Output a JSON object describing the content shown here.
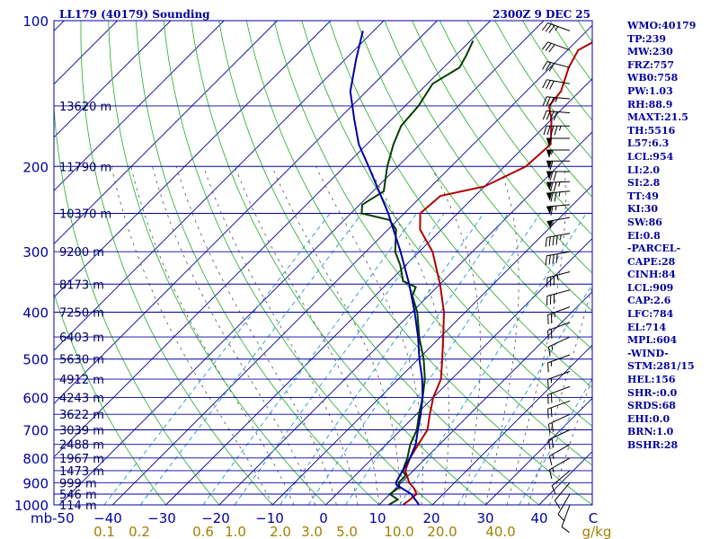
{
  "header": {
    "station": "LL179 (40179) Sounding",
    "time": "2300Z  9 DEC 25"
  },
  "indices": [
    "WMO:40179",
    "TP:239",
    "MW:230",
    "FRZ:757",
    "WB0:758",
    "PW:1.03",
    "RH:88.9",
    "MAXT:21.5",
    "TH:5516",
    "L57:6.3",
    "LCL:954",
    "LI:2.0",
    "SI:2.8",
    "TT:49",
    "KI:30",
    "SW:86",
    "EI:0.8",
    "-PARCEL-",
    "CAPE:28",
    "CINH:84",
    "LCL:909",
    "CAP:2.6",
    "LFC:784",
    "EL:714",
    "MPL:604",
    "-WIND-",
    "STM:281/15",
    "HEL:156",
    "SHR-:0.0",
    "SRDS:68",
    "EHI:0.0",
    "BRN:1.0",
    "BSHR:28"
  ],
  "chart_data": {
    "type": "skew-t",
    "title": "LL179 (40179) Sounding",
    "valid_time": "2300Z  9 DEC 25",
    "pressure_range_mb": [
      1000,
      100
    ],
    "pressure_ticks": [
      100,
      200,
      300,
      400,
      500,
      600,
      700,
      800,
      900,
      1000
    ],
    "temperature_ticks": [
      -50,
      -40,
      -30,
      -20,
      -10,
      0,
      10,
      20,
      30,
      40,
      50
    ],
    "temperature_tick_labels": [
      "mb-50",
      "−40",
      "−30",
      "−20",
      "−10",
      "0",
      "10",
      "20",
      "30",
      "40",
      "C"
    ],
    "temperature_range_c": [
      -50,
      50
    ],
    "mixing_ratio_labels": [
      "0.1",
      "0.2",
      "0.6",
      "1.0",
      "2.0",
      "3.0",
      "5.0",
      "10.0",
      "20.0",
      "40.0",
      "g/kg"
    ],
    "height_labels": [
      {
        "p": 150,
        "h": "13620 m"
      },
      {
        "p": 200,
        "h": "11790 m"
      },
      {
        "p": 250,
        "h": "10370 m"
      },
      {
        "p": 300,
        "h": "9200 m"
      },
      {
        "p": 350,
        "h": "8173 m"
      },
      {
        "p": 400,
        "h": "7250 m"
      },
      {
        "p": 450,
        "h": "6403 m"
      },
      {
        "p": 500,
        "h": "5630 m"
      },
      {
        "p": 550,
        "h": "4912 m"
      },
      {
        "p": 600,
        "h": "4243 m"
      },
      {
        "p": 650,
        "h": "3622 m"
      },
      {
        "p": 700,
        "h": "3039 m"
      },
      {
        "p": 750,
        "h": "2488 m"
      },
      {
        "p": 800,
        "h": "1967 m"
      },
      {
        "p": 850,
        "h": "1473 m"
      },
      {
        "p": 900,
        "h": "999 m"
      },
      {
        "p": 950,
        "h": "546 m"
      },
      {
        "p": 1000,
        "h": "114 m"
      }
    ],
    "series": [
      {
        "name": "Temperature",
        "color": "#b00000",
        "points": [
          [
            1000,
            14.5
          ],
          [
            975,
            14.8
          ],
          [
            950,
            15.0
          ],
          [
            925,
            13.5
          ],
          [
            900,
            11.5
          ],
          [
            850,
            8.5
          ],
          [
            800,
            7.0
          ],
          [
            750,
            6.0
          ],
          [
            700,
            5.0
          ],
          [
            650,
            2.5
          ],
          [
            600,
            0.0
          ],
          [
            550,
            -2.0
          ],
          [
            500,
            -5.5
          ],
          [
            450,
            -9.5
          ],
          [
            400,
            -14.0
          ],
          [
            350,
            -20.0
          ],
          [
            300,
            -27.5
          ],
          [
            270,
            -34.0
          ],
          [
            250,
            -37.0
          ],
          [
            230,
            -36.5
          ],
          [
            220,
            -30.0
          ],
          [
            200,
            -26.0
          ],
          [
            180,
            -25.5
          ],
          [
            160,
            -30.0
          ],
          [
            150,
            -33.0
          ],
          [
            140,
            -33.5
          ],
          [
            125,
            -36.5
          ],
          [
            115,
            -38.0
          ],
          [
            110,
            -36.5
          ]
        ]
      },
      {
        "name": "Dewpoint",
        "color": "#004000",
        "points": [
          [
            1000,
            11.8
          ],
          [
            975,
            12.5
          ],
          [
            960,
            11.0
          ],
          [
            950,
            10.0
          ],
          [
            920,
            10.5
          ],
          [
            900,
            9.5
          ],
          [
            870,
            9.5
          ],
          [
            850,
            8.0
          ],
          [
            800,
            6.5
          ],
          [
            750,
            4.5
          ],
          [
            700,
            3.0
          ],
          [
            650,
            0.5
          ],
          [
            600,
            -2.0
          ],
          [
            550,
            -5.0
          ],
          [
            500,
            -9.0
          ],
          [
            450,
            -14.0
          ],
          [
            400,
            -19.0
          ],
          [
            370,
            -23.0
          ],
          [
            355,
            -24.0
          ],
          [
            345,
            -27.5
          ],
          [
            320,
            -31.0
          ],
          [
            300,
            -34.5
          ],
          [
            270,
            -38.5
          ],
          [
            258,
            -41.5
          ],
          [
            250,
            -48.0
          ],
          [
            240,
            -49.5
          ],
          [
            225,
            -48.0
          ],
          [
            200,
            -52.0
          ],
          [
            180,
            -55.0
          ],
          [
            165,
            -57.0
          ],
          [
            150,
            -57.5
          ],
          [
            135,
            -59.0
          ],
          [
            125,
            -57.0
          ],
          [
            118,
            -58.0
          ],
          [
            110,
            -59.5
          ]
        ]
      },
      {
        "name": "Parcel",
        "color": "#0000a0",
        "points": [
          [
            1000,
            17.5
          ],
          [
            950,
            14.0
          ],
          [
            909,
            9.5
          ],
          [
            900,
            9.0
          ],
          [
            850,
            8.0
          ],
          [
            800,
            7.0
          ],
          [
            750,
            5.5
          ],
          [
            700,
            3.2
          ],
          [
            650,
            0.8
          ],
          [
            600,
            -2.0
          ],
          [
            550,
            -5.5
          ],
          [
            500,
            -9.8
          ],
          [
            450,
            -14.2
          ],
          [
            400,
            -19.5
          ],
          [
            350,
            -25.8
          ],
          [
            300,
            -33.5
          ],
          [
            250,
            -43.0
          ],
          [
            200,
            -55.5
          ],
          [
            180,
            -61.5
          ],
          [
            160,
            -67.0
          ],
          [
            140,
            -73.0
          ],
          [
            120,
            -78.0
          ],
          [
            105,
            -82.0
          ]
        ]
      }
    ],
    "wind_barbs": [
      {
        "p": 105,
        "dir": 290,
        "spd": 35
      },
      {
        "p": 115,
        "dir": 290,
        "spd": 30
      },
      {
        "p": 125,
        "dir": 285,
        "spd": 30
      },
      {
        "p": 135,
        "dir": 280,
        "spd": 30
      },
      {
        "p": 145,
        "dir": 275,
        "spd": 35
      },
      {
        "p": 155,
        "dir": 275,
        "spd": 40
      },
      {
        "p": 165,
        "dir": 270,
        "spd": 45
      },
      {
        "p": 175,
        "dir": 270,
        "spd": 50
      },
      {
        "p": 185,
        "dir": 270,
        "spd": 55
      },
      {
        "p": 195,
        "dir": 270,
        "spd": 60
      },
      {
        "p": 205,
        "dir": 270,
        "spd": 70
      },
      {
        "p": 215,
        "dir": 268,
        "spd": 75
      },
      {
        "p": 225,
        "dir": 265,
        "spd": 75
      },
      {
        "p": 240,
        "dir": 265,
        "spd": 65
      },
      {
        "p": 255,
        "dir": 260,
        "spd": 55
      },
      {
        "p": 275,
        "dir": 260,
        "spd": 45
      },
      {
        "p": 300,
        "dir": 260,
        "spd": 40
      },
      {
        "p": 330,
        "dir": 255,
        "spd": 35
      },
      {
        "p": 360,
        "dir": 255,
        "spd": 30
      },
      {
        "p": 390,
        "dir": 250,
        "spd": 25
      },
      {
        "p": 420,
        "dir": 250,
        "spd": 20
      },
      {
        "p": 450,
        "dir": 245,
        "spd": 15
      },
      {
        "p": 490,
        "dir": 250,
        "spd": 15
      },
      {
        "p": 530,
        "dir": 250,
        "spd": 15
      },
      {
        "p": 570,
        "dir": 250,
        "spd": 20
      },
      {
        "p": 610,
        "dir": 250,
        "spd": 20
      },
      {
        "p": 650,
        "dir": 245,
        "spd": 20
      },
      {
        "p": 700,
        "dir": 245,
        "spd": 20
      },
      {
        "p": 750,
        "dir": 240,
        "spd": 15
      },
      {
        "p": 800,
        "dir": 240,
        "spd": 15
      },
      {
        "p": 850,
        "dir": 230,
        "spd": 10
      },
      {
        "p": 900,
        "dir": 220,
        "spd": 10
      },
      {
        "p": 950,
        "dir": 210,
        "spd": 10
      },
      {
        "p": 1000,
        "dir": 200,
        "spd": 10
      }
    ]
  }
}
